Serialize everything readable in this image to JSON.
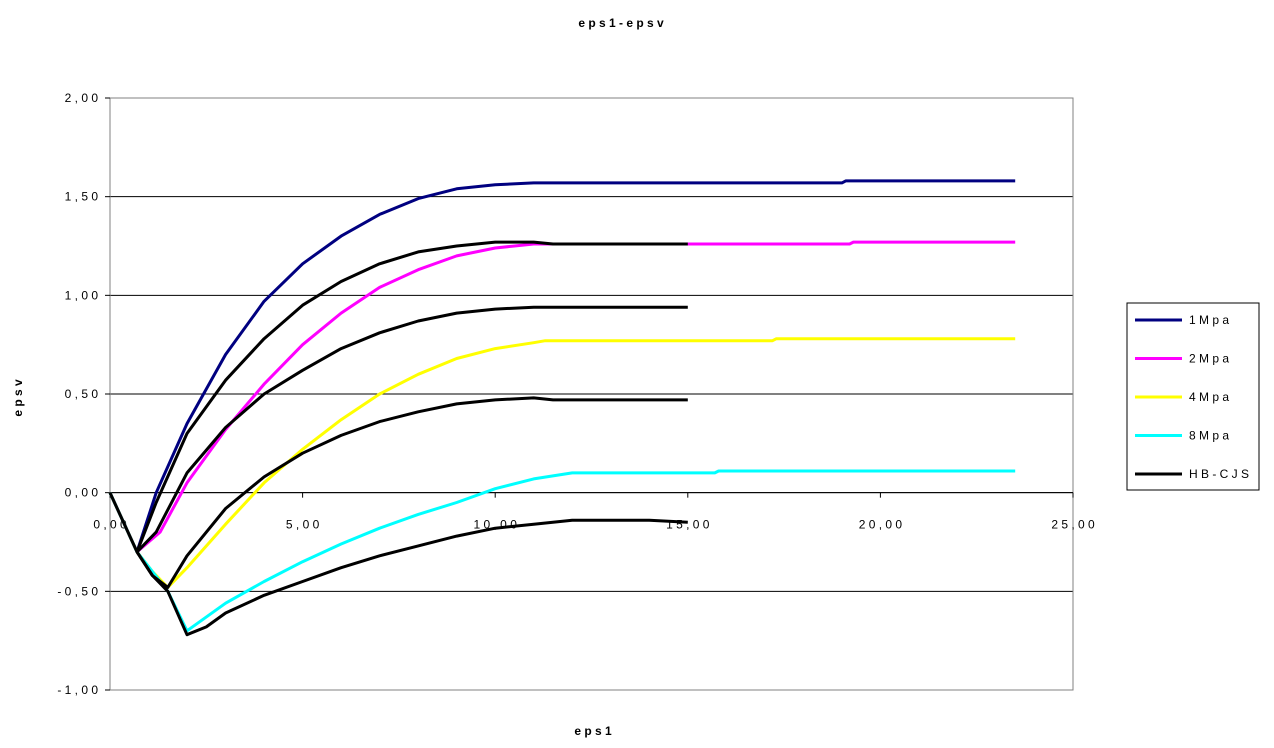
{
  "chart_data": {
    "type": "line",
    "title": "e p s 1 - e p s v",
    "xlabel": "e p s 1",
    "ylabel": "e p s v",
    "xlim": [
      0,
      25
    ],
    "ylim": [
      -1,
      2
    ],
    "x_ticks": [
      0,
      5,
      10,
      15,
      20,
      25
    ],
    "x_tick_labels": [
      "0 , 0 0",
      "5 , 0 0",
      "1 0 , 0 0",
      "1 5 , 0 0",
      "2 0 , 0 0",
      "2 5 , 0 0"
    ],
    "y_ticks": [
      -1,
      -0.5,
      0,
      0.5,
      1,
      1.5,
      2
    ],
    "y_tick_labels": [
      "- 1 , 0 0",
      "- 0 , 5 0",
      "0 , 0 0",
      "0 , 5 0",
      "1 , 0 0",
      "1 , 5 0",
      "2 , 0 0"
    ],
    "grid": "horizontal",
    "legend_position": "right",
    "legend": [
      {
        "label": "1 M p a",
        "color": "#000080"
      },
      {
        "label": "2 M p a",
        "color": "#ff00ff"
      },
      {
        "label": "4 M p a",
        "color": "#ffff00"
      },
      {
        "label": "8 M p a",
        "color": "#00ffff"
      },
      {
        "label": "H B - C J S",
        "color": "#000000"
      }
    ],
    "series": [
      {
        "name": "1 M p a",
        "color": "#000080",
        "x": [
          0,
          0.7,
          1.2,
          2,
          3,
          4,
          5,
          6,
          7,
          8,
          9,
          10,
          11,
          12,
          14,
          16,
          19,
          19.1,
          23.5
        ],
        "y": [
          0,
          -0.3,
          0,
          0.35,
          0.7,
          0.97,
          1.16,
          1.3,
          1.41,
          1.49,
          1.54,
          1.56,
          1.57,
          1.57,
          1.57,
          1.57,
          1.57,
          1.58,
          1.58
        ]
      },
      {
        "name": "2 M p a",
        "color": "#ff00ff",
        "x": [
          0,
          0.7,
          1.3,
          2,
          3,
          4,
          5,
          6,
          7,
          8,
          9,
          10,
          10.5,
          11,
          15,
          19.2,
          19.3,
          23.5
        ],
        "y": [
          0,
          -0.3,
          -0.2,
          0.05,
          0.32,
          0.55,
          0.75,
          0.91,
          1.04,
          1.13,
          1.2,
          1.24,
          1.25,
          1.26,
          1.26,
          1.26,
          1.27,
          1.27
        ]
      },
      {
        "name": "4 M p a",
        "color": "#ffff00",
        "x": [
          0,
          0.7,
          1.1,
          1.5,
          2,
          3,
          4,
          5,
          6,
          7,
          8,
          9,
          10,
          11,
          11.3,
          17.2,
          17.3,
          23.5
        ],
        "y": [
          0,
          -0.3,
          -0.4,
          -0.48,
          -0.38,
          -0.16,
          0.05,
          0.22,
          0.37,
          0.5,
          0.6,
          0.68,
          0.73,
          0.76,
          0.77,
          0.77,
          0.78,
          0.78
        ]
      },
      {
        "name": "8 M p a",
        "color": "#00ffff",
        "x": [
          0,
          0.7,
          1.1,
          1.5,
          2,
          3,
          4,
          5,
          6,
          7,
          8,
          9,
          10,
          11,
          12,
          15.7,
          15.8,
          23.5
        ],
        "y": [
          0,
          -0.3,
          -0.4,
          -0.5,
          -0.7,
          -0.56,
          -0.45,
          -0.35,
          -0.26,
          -0.18,
          -0.11,
          -0.05,
          0.02,
          0.07,
          0.1,
          0.1,
          0.11,
          0.11
        ]
      },
      {
        "name": "H B - C J S",
        "color": "#000000",
        "x": [
          0,
          0.7,
          1.2,
          2,
          3,
          4,
          5,
          6,
          7,
          8,
          9,
          10,
          10.5,
          11,
          11.5,
          15
        ],
        "y": [
          0,
          -0.3,
          -0.05,
          0.3,
          0.57,
          0.78,
          0.95,
          1.07,
          1.16,
          1.22,
          1.25,
          1.27,
          1.27,
          1.27,
          1.26,
          1.26
        ]
      },
      {
        "name": "H B - C J S",
        "color": "#000000",
        "x": [
          0.7,
          1.2,
          2,
          3,
          4,
          5,
          6,
          7,
          8,
          9,
          10,
          11,
          11.5,
          15
        ],
        "y": [
          -0.3,
          -0.2,
          0.1,
          0.33,
          0.5,
          0.62,
          0.73,
          0.81,
          0.87,
          0.91,
          0.93,
          0.94,
          0.94,
          0.94
        ]
      },
      {
        "name": "H B - C J S",
        "color": "#000000",
        "x": [
          0.7,
          1.1,
          1.5,
          2,
          3,
          4,
          5,
          6,
          7,
          8,
          9,
          10,
          11,
          11.5,
          12,
          15
        ],
        "y": [
          -0.3,
          -0.42,
          -0.48,
          -0.32,
          -0.08,
          0.08,
          0.2,
          0.29,
          0.36,
          0.41,
          0.45,
          0.47,
          0.48,
          0.47,
          0.47,
          0.47
        ]
      },
      {
        "name": "H B - C J S",
        "color": "#000000",
        "x": [
          0.7,
          1.1,
          1.5,
          2,
          2.5,
          3,
          4,
          5,
          6,
          7,
          8,
          9,
          10,
          11,
          12,
          14,
          15
        ],
        "y": [
          -0.3,
          -0.42,
          -0.5,
          -0.72,
          -0.68,
          -0.61,
          -0.52,
          -0.45,
          -0.38,
          -0.32,
          -0.27,
          -0.22,
          -0.18,
          -0.16,
          -0.14,
          -0.14,
          -0.15
        ]
      }
    ]
  }
}
